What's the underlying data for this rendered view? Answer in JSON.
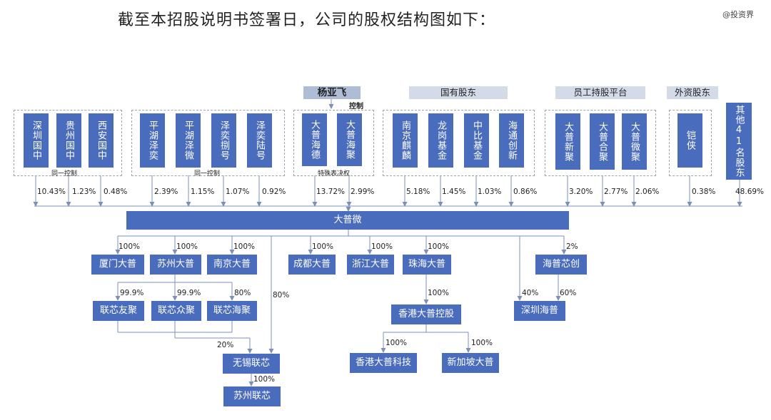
{
  "title": "截至本招股说明书签署日，公司的股权结构图如下：",
  "watermark": "@投资界",
  "categories": {
    "controller": "杨亚飞",
    "state": "国有股东",
    "employee": "员工持股平台",
    "foreign": "外资股东"
  },
  "control_label": "控制",
  "group_notes": {
    "g1": "同一控制",
    "g2": "同一控制",
    "g3": "特殊表决权"
  },
  "shareholders": [
    {
      "name": "深圳国中",
      "pct": "10.43%"
    },
    {
      "name": "贵州国中",
      "pct": "1.23%"
    },
    {
      "name": "西安国中",
      "pct": "0.48%"
    },
    {
      "name": "平湖泽奕",
      "pct": "2.39%"
    },
    {
      "name": "平湖泽微",
      "pct": "1.15%"
    },
    {
      "name": "泽奕捌号",
      "pct": "1.07%"
    },
    {
      "name": "泽奕陆号",
      "pct": "0.92%"
    },
    {
      "name": "大普海德",
      "pct": "13.72%"
    },
    {
      "name": "大普海聚",
      "pct": "2.99%"
    },
    {
      "name": "南京麒麟",
      "pct": "5.18%"
    },
    {
      "name": "龙岗基金",
      "pct": "1.45%"
    },
    {
      "name": "中比基金",
      "pct": "1.03%"
    },
    {
      "name": "海通创新",
      "pct": "0.86%"
    },
    {
      "name": "大普新聚",
      "pct": "3.20%"
    },
    {
      "name": "大普合聚",
      "pct": "2.77%"
    },
    {
      "name": "大普微聚",
      "pct": "2.06%"
    },
    {
      "name": "铠侠",
      "pct": "0.38%"
    },
    {
      "name": "其他41名股东",
      "pct": "48.69%"
    }
  ],
  "company": "大普微",
  "subsidiaries": {
    "xiamen": {
      "name": "厦门大普",
      "pct": "100%"
    },
    "suzhou": {
      "name": "苏州大普",
      "pct": "100%"
    },
    "nanjing": {
      "name": "南京大普",
      "pct": "100%"
    },
    "chengdu": {
      "name": "成都大普",
      "pct": "100%"
    },
    "zhejiang": {
      "name": "浙江大普",
      "pct": "100%"
    },
    "zhuhai": {
      "name": "珠海大普",
      "pct": "100%"
    },
    "haipu": {
      "name": "海普芯创",
      "pct": "2%"
    },
    "lxyj": {
      "name": "联芯友聚",
      "pct": "99.9%"
    },
    "lxzj": {
      "name": "联芯众聚",
      "pct": "99.9%"
    },
    "lxhj": {
      "name": "联芯海聚",
      "pct": "80%"
    },
    "hk": {
      "name": "香港大普控股",
      "pct": "100%"
    },
    "szhp": {
      "name": "深圳海普",
      "pct_a": "40%",
      "pct_b": "60%"
    },
    "wuxi": {
      "name": "无锡联芯",
      "pct_a": "80%",
      "pct_b": "20%"
    },
    "hktech": {
      "name": "香港大普科技",
      "pct": "100%"
    },
    "sg": {
      "name": "新加坡大普",
      "pct": "100%"
    },
    "szlx": {
      "name": "苏州联芯",
      "pct": "100%"
    }
  }
}
